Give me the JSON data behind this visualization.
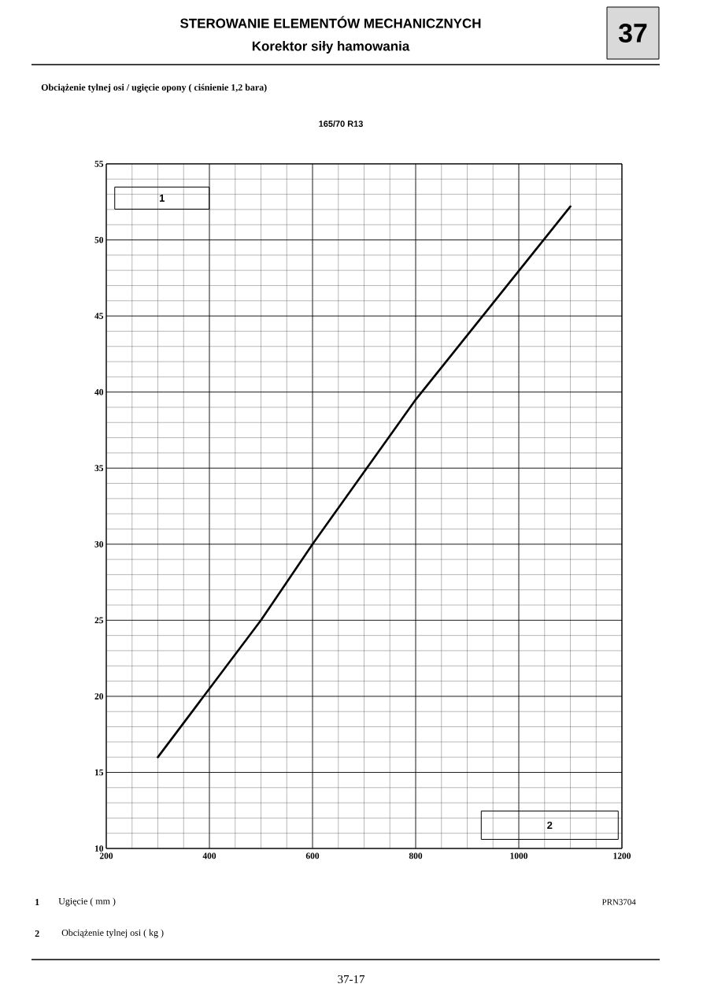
{
  "chart_data": {
    "type": "line",
    "title": "STEROWANIE ELEMENTÓW MECHANICZNYCH",
    "subtitle": "Korektor siły hamowania",
    "xlabel": "2",
    "ylabel": "1",
    "annotations": [
      "37",
      "Obciążenie tylnej osi / ugięcie opony ( ciśnienie 1,2 bara)",
      "165/70 R13",
      "1",
      "Ugięcie ( mm )",
      "2",
      "Obciążenie tylnej osi ( kg )",
      "PRN3704",
      "37-17"
    ],
    "x": [
      300,
      500,
      600,
      800,
      1100
    ],
    "series": [
      {
        "color": "#000000",
        "values": [
          16,
          25,
          30,
          39.5,
          52.2
        ]
      }
    ],
    "xlim": [
      200,
      1200
    ],
    "xticks": [
      200,
      400,
      600,
      800,
      1000,
      1200
    ],
    "ylim": [
      10,
      55
    ],
    "yticks": [
      10,
      15,
      20,
      25,
      30,
      35,
      40,
      45,
      50,
      55
    ],
    "grid": true,
    "marker": "none",
    "line_style": "solid"
  }
}
